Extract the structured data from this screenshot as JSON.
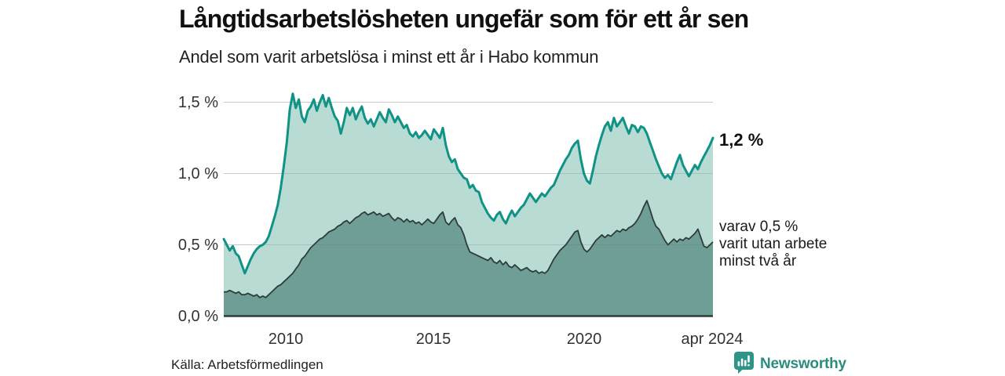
{
  "header": {
    "title": "Långtidsarbetslösheten ungefär som för ett år sen",
    "subtitle": "Andel som varit arbetslösa i minst ett år i Habo kommun"
  },
  "axes": {
    "y_ticks": [
      "1,5 %",
      "1,0 %",
      "0,5 %",
      "0,0 %"
    ],
    "x_ticks": [
      "2010",
      "2015",
      "2020",
      "apr 2024"
    ]
  },
  "annotations": {
    "latest_value": "1,2 %",
    "secondary": "varav 0,5 %\nvarit utan arbete\nminst två år"
  },
  "footer": {
    "source": "Källa: Arbetsförmedlingen",
    "brand": "Newsworthy"
  },
  "colors": {
    "line_primary": "#0f9386",
    "fill_primary": "#b8dbd4",
    "line_secondary": "#2e3c3a",
    "fill_secondary": "#6f9e97",
    "gridline": "#e5e5e5",
    "grid_overlay": "rgba(100,100,100,0.22)",
    "baseline": "#2e3c3a",
    "brand_teal": "#2c8c80"
  },
  "chart_data": {
    "type": "area",
    "title": "Långtidsarbetslösheten ungefär som för ett år sen",
    "subtitle": "Andel som varit arbetslösa i minst ett år i Habo kommun",
    "unit": "%",
    "x_unit": "decimal year (monthly-resolution estimates)",
    "x_start": 2008.0,
    "x_step": 0.1,
    "x_end": 2024.3,
    "ylim": [
      0,
      1.6
    ],
    "y_tick_values": [
      0.0,
      0.5,
      1.0,
      1.5
    ],
    "x_tick_labels": [
      "2010",
      "2015",
      "2020",
      "apr 2024"
    ],
    "x_tick_positions": [
      2010,
      2015,
      2020,
      2024.3
    ],
    "grid": true,
    "legend_position": "annotations-right",
    "latest": {
      "minst_ett_ar": 1.2,
      "minst_tva_ar": 0.5
    },
    "series": [
      {
        "name": "Andel arbetslösa minst ett år",
        "values": [
          0.54,
          0.5,
          0.46,
          0.49,
          0.44,
          0.42,
          0.36,
          0.3,
          0.35,
          0.4,
          0.44,
          0.47,
          0.49,
          0.5,
          0.52,
          0.56,
          0.63,
          0.7,
          0.78,
          0.9,
          1.05,
          1.22,
          1.45,
          1.56,
          1.46,
          1.52,
          1.4,
          1.36,
          1.44,
          1.47,
          1.52,
          1.44,
          1.5,
          1.55,
          1.47,
          1.53,
          1.46,
          1.4,
          1.37,
          1.28,
          1.36,
          1.46,
          1.41,
          1.46,
          1.38,
          1.43,
          1.47,
          1.39,
          1.35,
          1.38,
          1.33,
          1.38,
          1.43,
          1.39,
          1.36,
          1.45,
          1.41,
          1.36,
          1.4,
          1.36,
          1.32,
          1.34,
          1.28,
          1.26,
          1.29,
          1.25,
          1.27,
          1.3,
          1.27,
          1.24,
          1.31,
          1.28,
          1.25,
          1.32,
          1.2,
          1.12,
          1.08,
          1.1,
          1.03,
          1.0,
          0.97,
          0.96,
          0.9,
          0.92,
          0.88,
          0.87,
          0.8,
          0.76,
          0.72,
          0.69,
          0.67,
          0.71,
          0.73,
          0.68,
          0.65,
          0.7,
          0.74,
          0.7,
          0.73,
          0.76,
          0.78,
          0.82,
          0.86,
          0.83,
          0.8,
          0.83,
          0.86,
          0.84,
          0.87,
          0.9,
          0.92,
          0.97,
          1.02,
          1.06,
          1.1,
          1.13,
          1.18,
          1.21,
          1.23,
          1.1,
          1.0,
          0.95,
          0.93,
          1.02,
          1.12,
          1.2,
          1.27,
          1.33,
          1.36,
          1.3,
          1.39,
          1.33,
          1.36,
          1.39,
          1.33,
          1.28,
          1.34,
          1.33,
          1.29,
          1.33,
          1.32,
          1.28,
          1.22,
          1.16,
          1.1,
          1.05,
          1.0,
          0.97,
          0.99,
          0.96,
          1.02,
          1.08,
          1.13,
          1.06,
          1.02,
          0.98,
          1.02,
          1.06,
          1.03,
          1.08,
          1.12,
          1.16,
          1.2,
          1.25
        ]
      },
      {
        "name": "varav utan arbete minst två år",
        "values": [
          0.17,
          0.17,
          0.18,
          0.17,
          0.16,
          0.17,
          0.15,
          0.15,
          0.16,
          0.15,
          0.14,
          0.15,
          0.13,
          0.14,
          0.13,
          0.15,
          0.17,
          0.19,
          0.21,
          0.22,
          0.24,
          0.26,
          0.28,
          0.3,
          0.33,
          0.36,
          0.4,
          0.42,
          0.45,
          0.48,
          0.5,
          0.52,
          0.54,
          0.55,
          0.57,
          0.59,
          0.6,
          0.61,
          0.63,
          0.64,
          0.66,
          0.67,
          0.65,
          0.67,
          0.69,
          0.7,
          0.72,
          0.73,
          0.71,
          0.72,
          0.73,
          0.71,
          0.72,
          0.7,
          0.71,
          0.72,
          0.69,
          0.67,
          0.69,
          0.68,
          0.66,
          0.68,
          0.66,
          0.67,
          0.65,
          0.66,
          0.64,
          0.66,
          0.68,
          0.66,
          0.65,
          0.68,
          0.71,
          0.73,
          0.66,
          0.64,
          0.67,
          0.69,
          0.64,
          0.62,
          0.57,
          0.5,
          0.45,
          0.44,
          0.43,
          0.42,
          0.41,
          0.4,
          0.39,
          0.41,
          0.38,
          0.37,
          0.39,
          0.36,
          0.38,
          0.35,
          0.34,
          0.36,
          0.34,
          0.32,
          0.33,
          0.34,
          0.32,
          0.31,
          0.32,
          0.3,
          0.31,
          0.3,
          0.32,
          0.36,
          0.4,
          0.43,
          0.46,
          0.48,
          0.5,
          0.53,
          0.56,
          0.59,
          0.6,
          0.52,
          0.47,
          0.45,
          0.47,
          0.5,
          0.53,
          0.55,
          0.57,
          0.55,
          0.57,
          0.56,
          0.58,
          0.6,
          0.59,
          0.61,
          0.6,
          0.62,
          0.63,
          0.65,
          0.68,
          0.72,
          0.77,
          0.81,
          0.75,
          0.68,
          0.63,
          0.61,
          0.57,
          0.53,
          0.5,
          0.52,
          0.54,
          0.52,
          0.54,
          0.53,
          0.55,
          0.54,
          0.56,
          0.58,
          0.61,
          0.55,
          0.49,
          0.48,
          0.5,
          0.52
        ]
      }
    ]
  }
}
